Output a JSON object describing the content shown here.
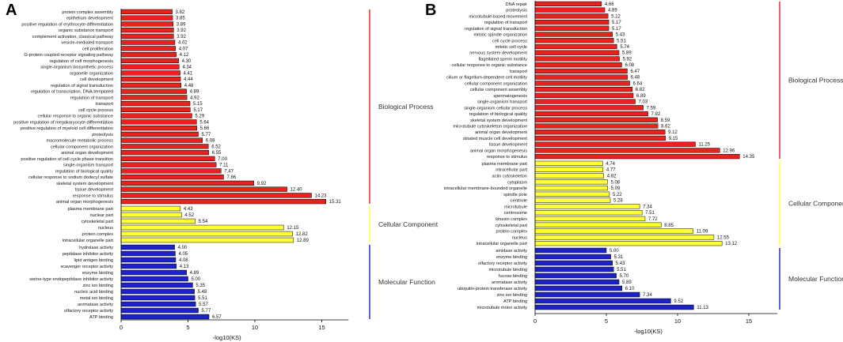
{
  "chart_data": [
    {
      "type": "bar",
      "orientation": "horizontal",
      "panel": "A",
      "xlabel": "-log10(KS)",
      "xlim": [
        0,
        17
      ],
      "xticks": [
        0,
        5,
        10,
        15
      ],
      "groups": [
        {
          "name": "Biological Process",
          "color": "#e8231f",
          "categories": [
            {
              "label": "protein complex assembly",
              "value": 3.82
            },
            {
              "label": "epithelium development",
              "value": 3.85
            },
            {
              "label": "positive regulation of erythrocyte differentiation",
              "value": 3.89
            },
            {
              "label": "organic substance transport",
              "value": 3.92
            },
            {
              "label": "complement activation, classical pathway",
              "value": 3.92
            },
            {
              "label": "vesicle-mediated transport",
              "value": 4.02
            },
            {
              "label": "cell proliferation",
              "value": 4.07
            },
            {
              "label": "G-protein coupled receptor signaling pathway",
              "value": 4.12
            },
            {
              "label": "regulation of cell morphogenesis",
              "value": 4.3
            },
            {
              "label": "single-organism biosynthetic process",
              "value": 4.34
            },
            {
              "label": "organelle organization",
              "value": 4.41
            },
            {
              "label": "cell development",
              "value": 4.44
            },
            {
              "label": "regulation of signal transduction",
              "value": 4.48
            },
            {
              "label": "regulation of transcription, DNA-templated",
              "value": 4.89
            },
            {
              "label": "regulation of transport",
              "value": 4.92
            },
            {
              "label": "transport",
              "value": 5.15
            },
            {
              "label": "cell cycle process",
              "value": 5.17
            },
            {
              "label": "cellular response to organic substance",
              "value": 5.29
            },
            {
              "label": "positive regulation of megakaryocyte differentiation",
              "value": 5.64
            },
            {
              "label": "positive regulation of myeloid cell differentiation",
              "value": 5.66
            },
            {
              "label": "proteolysis",
              "value": 5.77
            },
            {
              "label": "macromolecule metabolic process",
              "value": 6.08
            },
            {
              "label": "cellular component organization",
              "value": 6.52
            },
            {
              "label": "animal organ development",
              "value": 6.55
            },
            {
              "label": "positive regulation of cell cycle phase transition",
              "value": 7.0
            },
            {
              "label": "single-organism transport",
              "value": 7.11
            },
            {
              "label": "regulation of biological quality",
              "value": 7.47
            },
            {
              "label": "cellular response to sodium dodecyl sulfate",
              "value": 7.66
            },
            {
              "label": "skeletal system development",
              "value": 9.92
            },
            {
              "label": "tissue development",
              "value": 12.4
            },
            {
              "label": "response to stimulus",
              "value": 14.23
            },
            {
              "label": "animal organ morphogenesis",
              "value": 15.31
            }
          ]
        },
        {
          "name": "Cellular Component",
          "color": "#ffff33",
          "categories": [
            {
              "label": "plasma membrane part",
              "value": 4.43
            },
            {
              "label": "nuclear part",
              "value": 4.52
            },
            {
              "label": "cytoskeletal part",
              "value": 5.54
            },
            {
              "label": "nucleus",
              "value": 12.15
            },
            {
              "label": "protein complex",
              "value": 12.82
            },
            {
              "label": "intracellular organelle part",
              "value": 12.89
            }
          ]
        },
        {
          "name": "Molecular Function",
          "color": "#1a22c8",
          "categories": [
            {
              "label": "hydrolase activity",
              "value": 4.0
            },
            {
              "label": "peptidase inhibitor activity",
              "value": 4.05
            },
            {
              "label": "lipid antigen binding",
              "value": 4.08
            },
            {
              "label": "scavenger receptor activity",
              "value": 4.13
            },
            {
              "label": "enzyme binding",
              "value": 4.89
            },
            {
              "label": "serine-type endopeptidase inhibitor activity",
              "value": 5.0
            },
            {
              "label": "zinc ion binding",
              "value": 5.35
            },
            {
              "label": "nucleic acid binding",
              "value": 5.48
            },
            {
              "label": "metal ion binding",
              "value": 5.51
            },
            {
              "label": "aromatase activity",
              "value": 5.57
            },
            {
              "label": "olfactory receptor activity",
              "value": 5.77
            },
            {
              "label": "ATP binding",
              "value": 6.57
            }
          ]
        }
      ]
    },
    {
      "type": "bar",
      "orientation": "horizontal",
      "panel": "B",
      "xlabel": "-log10(KS)",
      "xlim": [
        0,
        17
      ],
      "xticks": [
        0,
        5,
        10,
        15
      ],
      "groups": [
        {
          "name": "Biological Process",
          "color": "#e8231f",
          "categories": [
            {
              "label": "DNA repair",
              "value": 4.66
            },
            {
              "label": "proteolysis",
              "value": 4.89
            },
            {
              "label": "microtubule-based movement",
              "value": 5.12
            },
            {
              "label": "regulation of transport",
              "value": 5.17
            },
            {
              "label": "regulation of signal transduction",
              "value": 5.17
            },
            {
              "label": "mitotic spindle organization",
              "value": 5.43
            },
            {
              "label": "cell cycle process",
              "value": 5.51
            },
            {
              "label": "mitotic cell cycle",
              "value": 5.74
            },
            {
              "label": "nervous system development",
              "value": 5.89
            },
            {
              "label": "flagellated sperm motility",
              "value": 5.92
            },
            {
              "label": "cellular response to organic substance",
              "value": 6.08
            },
            {
              "label": "transport",
              "value": 6.47
            },
            {
              "label": "cilium or flagellum-dependent cell motility",
              "value": 6.48
            },
            {
              "label": "cellular component organization",
              "value": 6.64
            },
            {
              "label": "cellular component assembly",
              "value": 6.82
            },
            {
              "label": "spermatogenesis",
              "value": 6.89
            },
            {
              "label": "single-organism transport",
              "value": 7.03
            },
            {
              "label": "single-organism cellular process",
              "value": 7.59
            },
            {
              "label": "regulation of biological quality",
              "value": 7.92
            },
            {
              "label": "skeletal system development",
              "value": 8.59
            },
            {
              "label": "microtubule cytoskeleton organization",
              "value": 8.62
            },
            {
              "label": "animal organ development",
              "value": 9.12
            },
            {
              "label": "striated muscle cell development",
              "value": 9.15
            },
            {
              "label": "tissue development",
              "value": 11.25
            },
            {
              "label": "animal organ morphogenesis",
              "value": 12.96
            },
            {
              "label": "response to stimulus",
              "value": 14.35
            }
          ]
        },
        {
          "name": "Cellular Component",
          "color": "#ffff33",
          "categories": [
            {
              "label": "plasma membrane part",
              "value": 4.74
            },
            {
              "label": "intracellular part",
              "value": 4.77
            },
            {
              "label": "actin cytoskeleton",
              "value": 4.82
            },
            {
              "label": "cytoplasm",
              "value": 5.08
            },
            {
              "label": "intracellular membrane-bounded organelle",
              "value": 5.09
            },
            {
              "label": "spindle pole",
              "value": 5.22
            },
            {
              "label": "centriole",
              "value": 5.28
            },
            {
              "label": "microtubule",
              "value": 7.34
            },
            {
              "label": "centrosome",
              "value": 7.51
            },
            {
              "label": "kinesin complex",
              "value": 7.72
            },
            {
              "label": "cytoskeletal part",
              "value": 8.85
            },
            {
              "label": "protein complex",
              "value": 11.09
            },
            {
              "label": "nucleus",
              "value": 12.55
            },
            {
              "label": "intracellular organelle part",
              "value": 13.12
            }
          ]
        },
        {
          "name": "Molecular Function",
          "color": "#1a22c8",
          "categories": [
            {
              "label": "amidase activity",
              "value": 5.0
            },
            {
              "label": "enzyme binding",
              "value": 5.31
            },
            {
              "label": "olfactory receptor activity",
              "value": 5.43
            },
            {
              "label": "microtubule binding",
              "value": 5.51
            },
            {
              "label": "fucose binding",
              "value": 5.7
            },
            {
              "label": "aromatase activity",
              "value": 5.89
            },
            {
              "label": "ubiquitin-protein transferase activity",
              "value": 6.1
            },
            {
              "label": "zinc ion binding",
              "value": 7.34
            },
            {
              "label": "ATP binding",
              "value": 9.52
            },
            {
              "label": "microtubule motor activity",
              "value": 11.13
            }
          ]
        }
      ]
    }
  ]
}
